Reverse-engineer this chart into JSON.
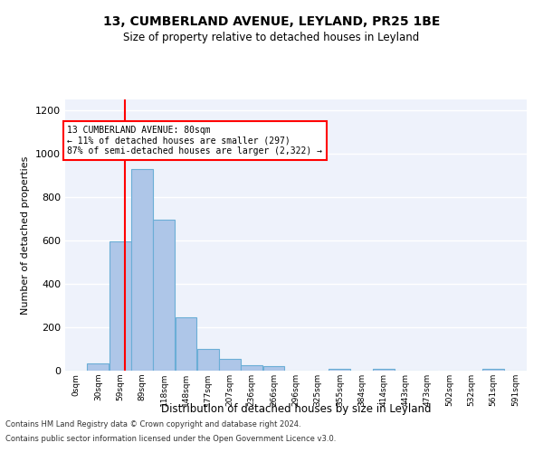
{
  "title1": "13, CUMBERLAND AVENUE, LEYLAND, PR25 1BE",
  "title2": "Size of property relative to detached houses in Leyland",
  "xlabel": "Distribution of detached houses by size in Leyland",
  "ylabel": "Number of detached properties",
  "bar_color": "#aec6e8",
  "bar_edge_color": "#6baed6",
  "background_color": "#eef2fb",
  "grid_color": "#ffffff",
  "annotation_text": "13 CUMBERLAND AVENUE: 80sqm\n← 11% of detached houses are smaller (297)\n87% of semi-detached houses are larger (2,322) →",
  "red_line_x": 80,
  "bin_edges": [
    0,
    29.5,
    59,
    88.5,
    118,
    147.5,
    177,
    206.5,
    236,
    265.5,
    295,
    324.5,
    354,
    383.5,
    413,
    442.5,
    472,
    501.5,
    531,
    560.5,
    590,
    620
  ],
  "bin_labels": [
    "0sqm",
    "30sqm",
    "59sqm",
    "89sqm",
    "118sqm",
    "148sqm",
    "177sqm",
    "207sqm",
    "236sqm",
    "266sqm",
    "296sqm",
    "325sqm",
    "355sqm",
    "384sqm",
    "414sqm",
    "443sqm",
    "473sqm",
    "502sqm",
    "532sqm",
    "561sqm",
    "591sqm"
  ],
  "bar_heights": [
    0,
    35,
    595,
    930,
    695,
    245,
    100,
    55,
    25,
    20,
    0,
    0,
    10,
    0,
    10,
    0,
    0,
    0,
    0,
    10,
    0
  ],
  "ylim": [
    0,
    1250
  ],
  "yticks": [
    0,
    200,
    400,
    600,
    800,
    1000,
    1200
  ],
  "footer1": "Contains HM Land Registry data © Crown copyright and database right 2024.",
  "footer2": "Contains public sector information licensed under the Open Government Licence v3.0."
}
